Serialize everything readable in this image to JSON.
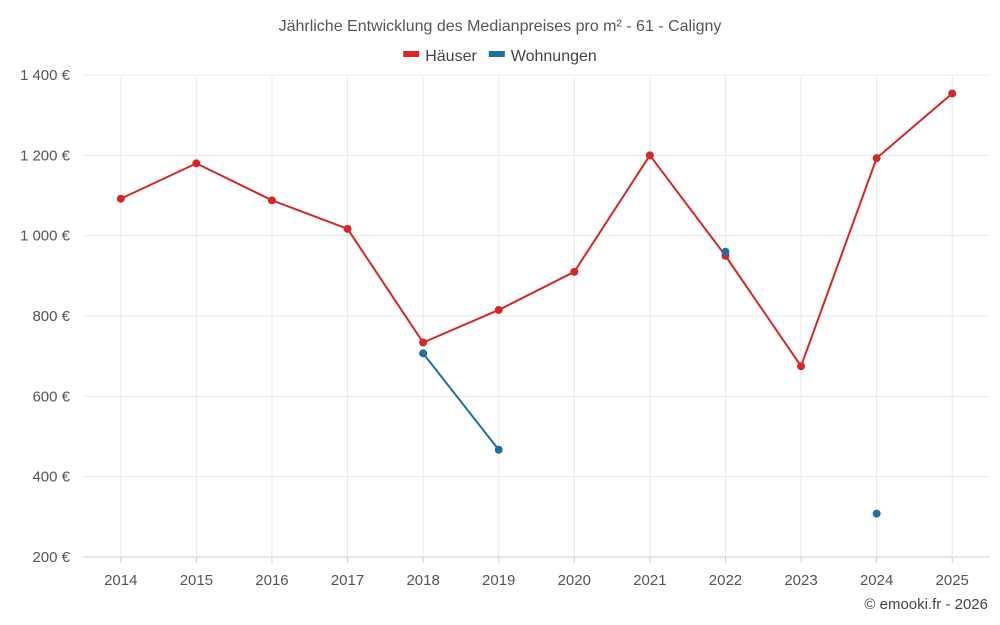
{
  "chart_data": {
    "type": "line",
    "title": "Jährliche Entwicklung des Medianpreises pro m² - 61 - Caligny",
    "categories": [
      "2014",
      "2015",
      "2016",
      "2017",
      "2018",
      "2019",
      "2020",
      "2021",
      "2022",
      "2023",
      "2024",
      "2025"
    ],
    "y_ticks": [
      "200 €",
      "400 €",
      "600 €",
      "800 €",
      "1 000 €",
      "1 200 €",
      "1 400 €"
    ],
    "ylim": [
      200,
      1400
    ],
    "grid": true,
    "legend_position": "top-center",
    "series": [
      {
        "name": "Häuser",
        "color": "#d62728",
        "values": [
          1092,
          1180,
          1088,
          1017,
          734,
          815,
          910,
          1200,
          950,
          675,
          1193,
          1354
        ]
      },
      {
        "name": "Wohnungen",
        "color": "#1f6fa3",
        "values": [
          null,
          null,
          null,
          null,
          707,
          467,
          null,
          null,
          960,
          null,
          308,
          null
        ]
      }
    ],
    "credit": "© emooki.fr - 2026"
  }
}
